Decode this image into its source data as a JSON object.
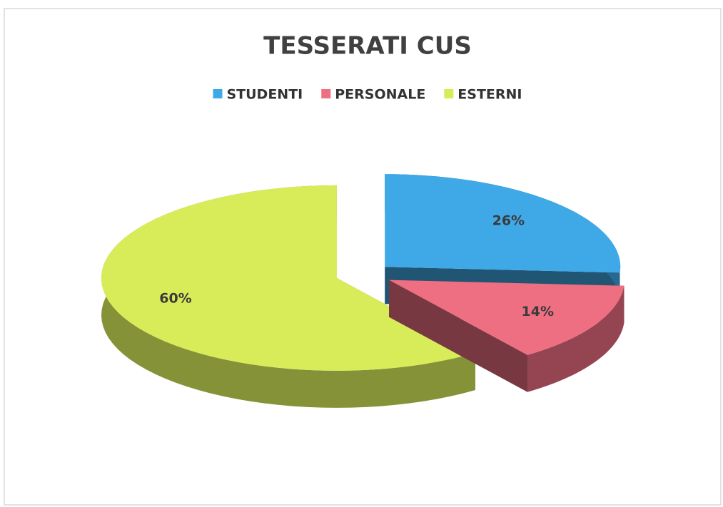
{
  "chart_data": {
    "type": "pie",
    "title": "TESSERATI CUS",
    "categories": [
      "STUDENTI",
      "PERSONALE",
      "ESTERNI"
    ],
    "values": [
      26,
      14,
      60
    ],
    "value_labels": [
      "26%",
      "14%",
      "60%"
    ],
    "colors": [
      "#3fa9e8",
      "#ee6f82",
      "#d8ec5a"
    ]
  }
}
